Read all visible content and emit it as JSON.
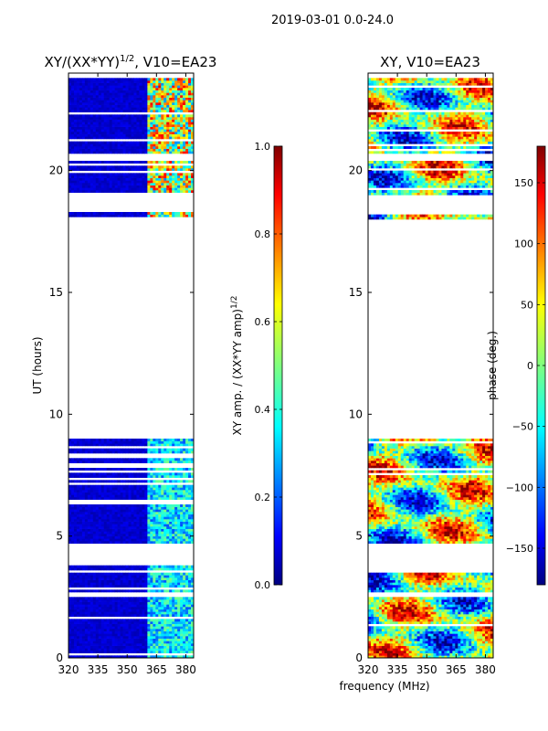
{
  "suptitle": "2019-03-01 0.0-24.0",
  "shared_xlabel": "frequency (MHz)",
  "chart_data": [
    {
      "type": "heatmap",
      "title_main": "XY/(XX*YY)",
      "title_sup": "1/2",
      "title_tail": ", V10=EA23",
      "ylabel": "UT (hours)",
      "xlim": [
        320,
        384
      ],
      "ylim": [
        0,
        24
      ],
      "xticks": [
        320,
        335,
        350,
        365,
        380
      ],
      "yticks": [
        0,
        5,
        10,
        15,
        20
      ],
      "populated_ut_ranges": [
        [
          0,
          2.5
        ],
        [
          2.7,
          3.8
        ],
        [
          4.7,
          9.0
        ],
        [
          18.0,
          18.3
        ],
        [
          19.0,
          20.4
        ],
        [
          20.7,
          23.8
        ]
      ],
      "colorbar": {
        "label_main": "XY amp. / (XX*YY amp)",
        "label_sup": "1/2",
        "range": [
          0.0,
          1.0
        ],
        "ticks": [
          "0.0",
          "0.2",
          "0.4",
          "0.6",
          "0.8",
          "1.0"
        ],
        "colormap": "jet"
      }
    },
    {
      "type": "heatmap",
      "title": "XY, V10=EA23",
      "xlim": [
        320,
        384
      ],
      "ylim": [
        0,
        24
      ],
      "xticks": [
        320,
        335,
        350,
        365,
        380
      ],
      "yticks": [
        0,
        5,
        10,
        15,
        20
      ],
      "populated_ut_ranges": [
        [
          0,
          2.5
        ],
        [
          2.7,
          3.8
        ],
        [
          4.7,
          9.0
        ],
        [
          18.0,
          18.3
        ],
        [
          19.0,
          20.4
        ],
        [
          20.7,
          23.8
        ]
      ],
      "colorbar": {
        "label": "phase (deg.)",
        "range": [
          -180,
          180
        ],
        "ticks": [
          "−150",
          "−100",
          "−50",
          "0",
          "50",
          "100",
          "150"
        ],
        "tick_values": [
          -150,
          -100,
          -50,
          0,
          50,
          100,
          150
        ],
        "colormap": "jet"
      }
    }
  ]
}
